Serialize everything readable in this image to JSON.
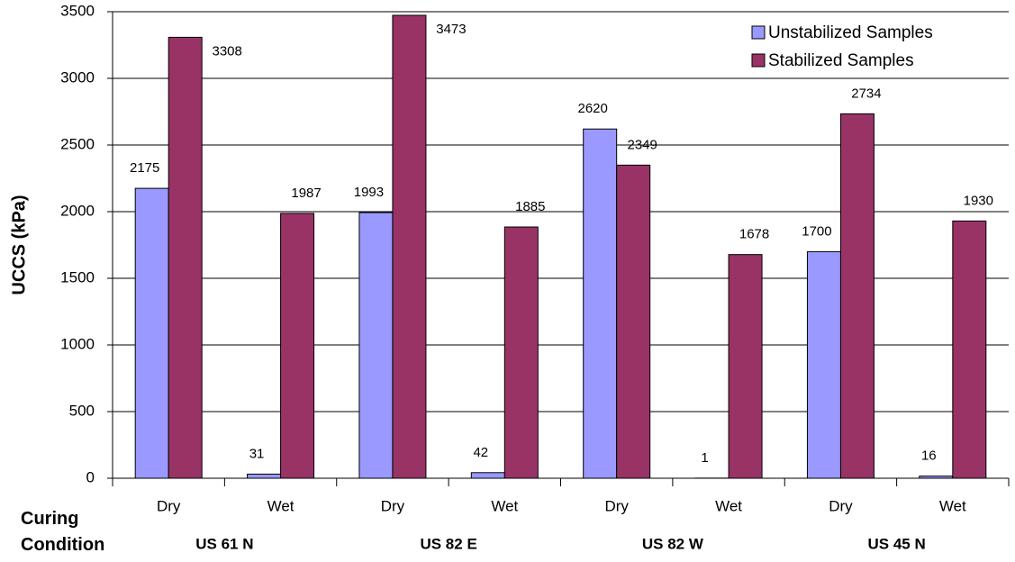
{
  "chart_data": {
    "type": "bar",
    "y_label": "UCCS (kPa)",
    "x_label": "Curing Condition",
    "categories": [
      "Dry",
      "Wet",
      "Dry",
      "Wet",
      "Dry",
      "Wet",
      "Dry",
      "Wet"
    ],
    "group_labels": [
      "US 61 N",
      "US 82 E",
      "US 82 W",
      "US 45 N"
    ],
    "series": [
      {
        "name": "Unstabilized Samples",
        "color": "#9999ff",
        "values": [
          2175,
          31,
          1993,
          42,
          2620,
          1,
          1700,
          16
        ]
      },
      {
        "name": "Stabilized Samples",
        "color": "#993366",
        "values": [
          3308,
          1987,
          3473,
          1885,
          2349,
          1678,
          2734,
          1930
        ]
      }
    ],
    "ylim": [
      0,
      3500
    ],
    "yticks": [
      0,
      500,
      1000,
      1500,
      2000,
      2500,
      3000,
      3500
    ],
    "grid": true,
    "legend": "upper right"
  }
}
